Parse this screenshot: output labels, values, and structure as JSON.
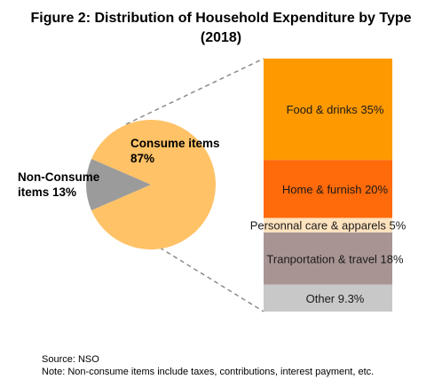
{
  "title": {
    "line1": "Figure 2:  Distribution of Household Expenditure by Type",
    "line2": "(2018)"
  },
  "notes": {
    "source": "Source: NSO",
    "note": "Note: Non-consume items include taxes, contributions, interest payment, etc."
  },
  "chart_data": {
    "type": "bar-of-pie",
    "pie": {
      "slices": [
        {
          "label_line1": "Consume items",
          "label_line2": "87%",
          "value": 87,
          "color": "#FFC266"
        },
        {
          "label_line1": "Non-Consume",
          "label_line2": "items 13%",
          "value": 13,
          "color": "#9B9B9B"
        }
      ]
    },
    "bar": {
      "segments": [
        {
          "label": "Food & drinks 35%",
          "value": 35,
          "color": "#FF9900"
        },
        {
          "label": "Home & furnish 20%",
          "value": 20,
          "color": "#FF6A0A"
        },
        {
          "label": "Personnal care & apparels  5%",
          "value": 5,
          "color": "#FFE3BF"
        },
        {
          "label": "Tranportation & travel 18%",
          "value": 18,
          "color": "#A89593"
        },
        {
          "label": "Other 9.3%",
          "value": 9.3,
          "color": "#C8C8C8"
        }
      ]
    }
  }
}
